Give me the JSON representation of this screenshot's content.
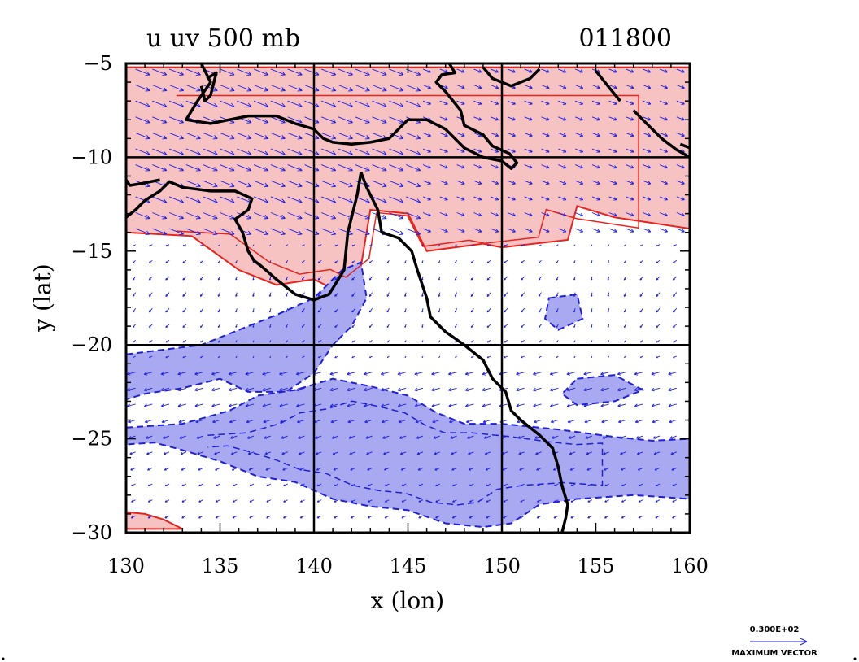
{
  "chart_data": {
    "type": "contour-vector-map",
    "title_left": "u uv 500 mb",
    "title_right": "011800",
    "xlabel": "x (lon)",
    "ylabel": "y (lat)",
    "xlim": [
      130,
      160
    ],
    "ylim": [
      -30,
      -5
    ],
    "x_ticks": [
      130,
      135,
      140,
      145,
      150,
      155,
      160
    ],
    "y_ticks": [
      -5,
      -10,
      -15,
      -20,
      -25,
      -30
    ],
    "x_tick_labels": [
      "130",
      "135",
      "140",
      "145",
      "150",
      "155",
      "160"
    ],
    "y_tick_labels": [
      "−5",
      "−10",
      "−15",
      "−20",
      "−25",
      "−30"
    ],
    "grid_lines": {
      "lon": [
        140,
        150
      ],
      "lat": [
        -10,
        -20
      ]
    },
    "vector_legend": {
      "magnitude_label": "0.300E+02",
      "caption": "MAXIMUM VECTOR"
    },
    "colors": {
      "positive_fill": "#f7c2c2",
      "positive_contour": "#e8231c",
      "negative_fill": "#a9a9f2",
      "negative_contour": "#1f1fd6",
      "vectors": "#2020e0",
      "coastline": "#000000"
    },
    "regions": {
      "positive_u": [
        [
          [
            130,
            -5.2
          ],
          [
            160,
            -5.2
          ],
          [
            160,
            -13.8
          ],
          [
            156,
            -13.2
          ],
          [
            154,
            -12.6
          ],
          [
            153.5,
            -14.4
          ],
          [
            150,
            -14.8
          ],
          [
            149,
            -14.6
          ],
          [
            146,
            -15
          ],
          [
            145,
            -13
          ],
          [
            143,
            -12.8
          ],
          [
            142.5,
            -15.8
          ],
          [
            141,
            -17
          ],
          [
            140,
            -16.5
          ],
          [
            138,
            -16.8
          ],
          [
            136,
            -16
          ],
          [
            133.5,
            -14.2
          ],
          [
            130,
            -14
          ]
        ],
        [
          [
            130,
            -29.8
          ],
          [
            133,
            -29.8
          ],
          [
            132,
            -29.3
          ],
          [
            131,
            -29
          ],
          [
            130,
            -28.9
          ]
        ]
      ],
      "negative_u": [
        [
          [
            130,
            -20.5
          ],
          [
            134,
            -20
          ],
          [
            136,
            -19.2
          ],
          [
            138,
            -18.4
          ],
          [
            140,
            -17.5
          ],
          [
            141.5,
            -16
          ],
          [
            142.5,
            -15.6
          ],
          [
            142.8,
            -17.5
          ],
          [
            142,
            -19
          ],
          [
            141,
            -20
          ],
          [
            140,
            -21.5
          ],
          [
            138.5,
            -22.5
          ],
          [
            136.5,
            -22.5
          ],
          [
            135,
            -21.8
          ],
          [
            133,
            -22.3
          ],
          [
            131,
            -22.6
          ],
          [
            130,
            -22.9
          ]
        ],
        [
          [
            130,
            -24.4
          ],
          [
            133,
            -24.2
          ],
          [
            135.5,
            -23.5
          ],
          [
            137,
            -22.7
          ],
          [
            139,
            -22.4
          ],
          [
            141,
            -21.8
          ],
          [
            143,
            -22.2
          ],
          [
            145,
            -22.7
          ],
          [
            146.5,
            -23.6
          ],
          [
            148,
            -24.2
          ],
          [
            150,
            -24.2
          ],
          [
            153,
            -24.5
          ],
          [
            156,
            -24.9
          ],
          [
            158,
            -25.1
          ],
          [
            160,
            -25
          ],
          [
            160,
            -28.2
          ],
          [
            157,
            -28
          ],
          [
            154,
            -28.2
          ],
          [
            152,
            -28.5
          ],
          [
            150.5,
            -29.5
          ],
          [
            149,
            -29.7
          ],
          [
            147,
            -29.5
          ],
          [
            145,
            -28.8
          ],
          [
            143,
            -28.6
          ],
          [
            141,
            -28.2
          ],
          [
            139,
            -27.3
          ],
          [
            137,
            -27
          ],
          [
            135,
            -26.2
          ],
          [
            133,
            -25.6
          ],
          [
            131.5,
            -25.2
          ],
          [
            130,
            -25.3
          ]
        ],
        [
          [
            152.5,
            -17.5
          ],
          [
            154,
            -17.3
          ],
          [
            154.3,
            -18.6
          ],
          [
            153,
            -19.2
          ],
          [
            152.3,
            -18.6
          ]
        ],
        [
          [
            154,
            -21.8
          ],
          [
            156,
            -21.6
          ],
          [
            157.5,
            -22.4
          ],
          [
            156,
            -23
          ],
          [
            154,
            -23.2
          ],
          [
            153.2,
            -22.6
          ]
        ]
      ]
    },
    "coastlines": [
      [
        [
          134,
          -5
        ],
        [
          134.5,
          -6
        ],
        [
          133.8,
          -7
        ],
        [
          133.2,
          -8
        ],
        [
          134.5,
          -8.2
        ],
        [
          135.5,
          -8
        ],
        [
          136.5,
          -7.8
        ],
        [
          138,
          -7.8
        ],
        [
          139,
          -8.2
        ],
        [
          140,
          -8.5
        ],
        [
          140.5,
          -9
        ],
        [
          141,
          -9.2
        ],
        [
          142,
          -9.3
        ],
        [
          143,
          -9.2
        ],
        [
          144,
          -9
        ],
        [
          145,
          -8
        ],
        [
          146,
          -8
        ],
        [
          147,
          -8.5
        ],
        [
          148,
          -9.5
        ],
        [
          149,
          -10
        ],
        [
          150,
          -10.2
        ],
        [
          150.5,
          -10.6
        ],
        [
          150.8,
          -10.3
        ],
        [
          150.4,
          -9.8
        ],
        [
          149.5,
          -9.4
        ],
        [
          149,
          -8.8
        ],
        [
          148,
          -8.3
        ],
        [
          147.8,
          -7.5
        ],
        [
          147,
          -6.5
        ],
        [
          146.5,
          -6
        ],
        [
          146.8,
          -5.6
        ],
        [
          147.5,
          -5.5
        ],
        [
          147.2,
          -5
        ]
      ],
      [
        [
          142.5,
          -10.8
        ],
        [
          142.3,
          -12
        ],
        [
          142,
          -13.2
        ],
        [
          141.8,
          -14
        ],
        [
          141.7,
          -15
        ],
        [
          141.6,
          -16
        ],
        [
          140.8,
          -17.3
        ],
        [
          140,
          -17.6
        ],
        [
          139,
          -17.3
        ],
        [
          138,
          -16.5
        ],
        [
          137.2,
          -15.8
        ],
        [
          136.8,
          -15.5
        ],
        [
          136.5,
          -15
        ],
        [
          136.2,
          -14
        ],
        [
          135.8,
          -13.3
        ],
        [
          136.5,
          -12.8
        ],
        [
          136.7,
          -12.2
        ],
        [
          135.8,
          -11.8
        ],
        [
          134.5,
          -11.8
        ],
        [
          133,
          -11.6
        ],
        [
          132.3,
          -11.3
        ],
        [
          131.8,
          -11.8
        ],
        [
          131,
          -12.3
        ],
        [
          130.5,
          -12.8
        ],
        [
          130,
          -13.2
        ]
      ],
      [
        [
          142.5,
          -10.8
        ],
        [
          142.8,
          -11.6
        ],
        [
          143.4,
          -12.8
        ],
        [
          143.6,
          -14
        ],
        [
          144.5,
          -14.3
        ],
        [
          145.2,
          -15
        ],
        [
          145.5,
          -16
        ],
        [
          146,
          -17.5
        ],
        [
          146.2,
          -18.5
        ],
        [
          147,
          -19.3
        ],
        [
          148,
          -20
        ],
        [
          149,
          -20.8
        ],
        [
          149.5,
          -21.8
        ],
        [
          150.2,
          -22.5
        ],
        [
          150.5,
          -23.5
        ],
        [
          151,
          -24
        ],
        [
          152,
          -24.8
        ],
        [
          152.7,
          -25.5
        ],
        [
          153,
          -26.5
        ],
        [
          153.2,
          -27.5
        ],
        [
          153.5,
          -28.5
        ],
        [
          153.4,
          -29.2
        ],
        [
          153.2,
          -30
        ]
      ],
      [
        [
          131.8,
          -11.2
        ],
        [
          130.8,
          -11.4
        ],
        [
          130.2,
          -11.5
        ],
        [
          130,
          -11.2
        ]
      ],
      [
        [
          134.3,
          -5.8
        ],
        [
          134.8,
          -5.5
        ],
        [
          134.5,
          -6.7
        ],
        [
          134.2,
          -7
        ],
        [
          134,
          -6.2
        ]
      ],
      [
        [
          149,
          -5.2
        ],
        [
          149.5,
          -5.8
        ],
        [
          150.5,
          -6.2
        ],
        [
          151.5,
          -5.8
        ],
        [
          152,
          -5.3
        ]
      ],
      [
        [
          155,
          -5.4
        ],
        [
          155.8,
          -6.4
        ],
        [
          156.3,
          -7
        ]
      ],
      [
        [
          157,
          -7.5
        ],
        [
          157.8,
          -8.3
        ],
        [
          158.5,
          -9
        ],
        [
          159.3,
          -9.6
        ],
        [
          160,
          -10
        ]
      ],
      [
        [
          160,
          -9.5
        ],
        [
          159.5,
          -9.3
        ]
      ]
    ]
  }
}
